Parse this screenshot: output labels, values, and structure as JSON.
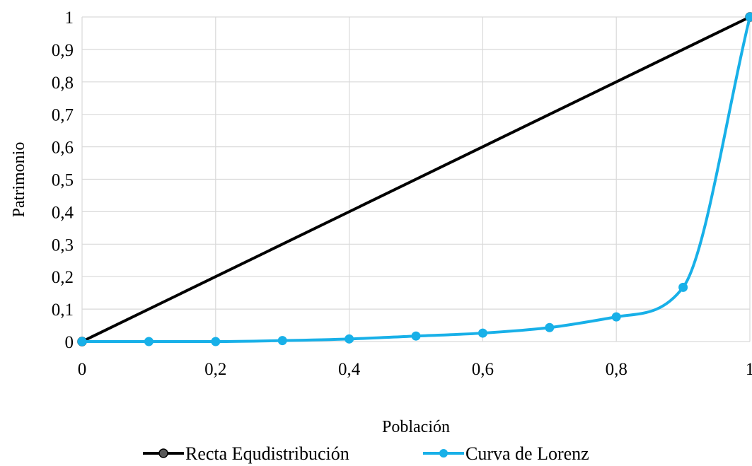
{
  "chart_data": {
    "type": "scatter",
    "xlabel": "Población",
    "ylabel": "Patrimonio",
    "xlim": [
      0,
      1
    ],
    "ylim": [
      0,
      1
    ],
    "x_ticks": [
      "0",
      "0,2",
      "0,4",
      "0,6",
      "0,8",
      "1"
    ],
    "y_ticks": [
      "0",
      "0,1",
      "0,2",
      "0,3",
      "0,4",
      "0,5",
      "0,6",
      "0,7",
      "0,8",
      "0,9",
      "1"
    ],
    "grid": true,
    "legend_position": "bottom",
    "series": [
      {
        "name": "Recta Equdistribución",
        "color": "#000000",
        "smooth": false,
        "x": [
          0,
          1
        ],
        "y": [
          0,
          1
        ]
      },
      {
        "name": "Curva de Lorenz",
        "color": "#18b0e8",
        "smooth": true,
        "x": [
          0,
          0.1,
          0.2,
          0.3,
          0.4,
          0.5,
          0.6,
          0.7,
          0.8,
          0.9,
          1
        ],
        "y": [
          0,
          0,
          0,
          0.003,
          0.008,
          0.017,
          0.026,
          0.043,
          0.076,
          0.167,
          1
        ]
      }
    ]
  }
}
